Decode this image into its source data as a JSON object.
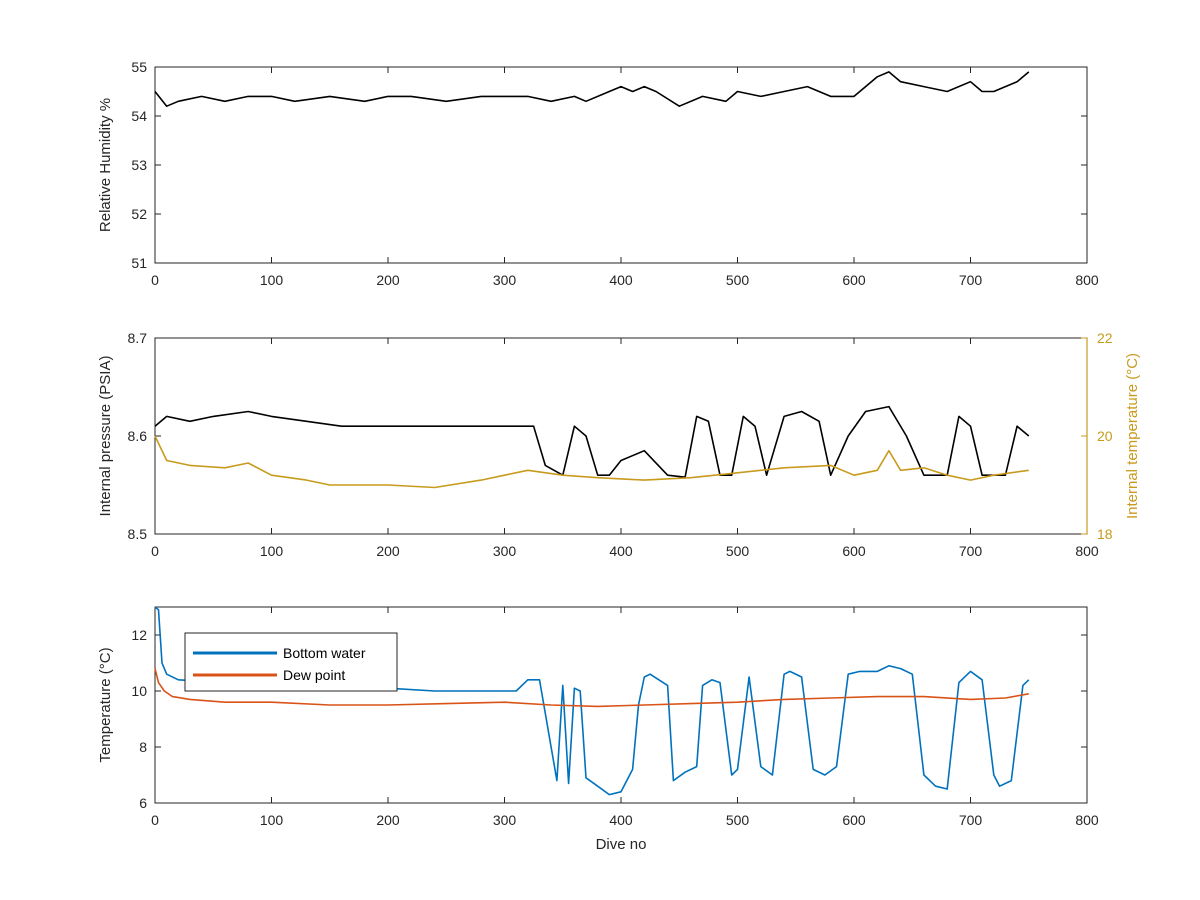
{
  "chart_data": [
    {
      "type": "line",
      "title": "",
      "xlabel": "",
      "ylabel": "Relative Humidity %",
      "xlim": [
        0,
        800
      ],
      "ylim": [
        51,
        55
      ],
      "xticks": [
        "0",
        "100",
        "200",
        "300",
        "400",
        "500",
        "600",
        "700",
        "800"
      ],
      "yticks": [
        "51",
        "52",
        "53",
        "54",
        "55"
      ],
      "grid": false,
      "series": [
        {
          "color": "#000000",
          "x": [
            0,
            10,
            20,
            40,
            60,
            80,
            100,
            120,
            150,
            180,
            200,
            220,
            250,
            280,
            300,
            320,
            340,
            360,
            370,
            390,
            400,
            410,
            420,
            430,
            450,
            470,
            490,
            500,
            520,
            540,
            560,
            580,
            600,
            610,
            620,
            630,
            640,
            660,
            680,
            700,
            710,
            720,
            730,
            740,
            750
          ],
          "y": [
            54.5,
            54.2,
            54.3,
            54.4,
            54.3,
            54.4,
            54.4,
            54.3,
            54.4,
            54.3,
            54.4,
            54.4,
            54.3,
            54.4,
            54.4,
            54.4,
            54.3,
            54.4,
            54.3,
            54.5,
            54.6,
            54.5,
            54.6,
            54.5,
            54.2,
            54.4,
            54.3,
            54.5,
            54.4,
            54.5,
            54.6,
            54.4,
            54.4,
            54.6,
            54.8,
            54.9,
            54.7,
            54.6,
            54.5,
            54.7,
            54.5,
            54.5,
            54.6,
            54.7,
            54.9
          ]
        }
      ]
    },
    {
      "type": "line",
      "title": "",
      "xlabel": "",
      "ylabel": "Internal pressure (PSIA)",
      "y2label": "Internal temperature (°C)",
      "xlim": [
        0,
        800
      ],
      "ylim": [
        8.5,
        8.7
      ],
      "y2lim": [
        18,
        22
      ],
      "xticks": [
        "0",
        "100",
        "200",
        "300",
        "400",
        "500",
        "600",
        "700",
        "800"
      ],
      "yticks": [
        "8.5",
        "8.6",
        "8.7"
      ],
      "y2ticks": [
        "18",
        "20",
        "22"
      ],
      "grid": false,
      "series": [
        {
          "axis": "left",
          "color": "#000000",
          "x": [
            0,
            10,
            30,
            50,
            80,
            100,
            130,
            160,
            200,
            230,
            260,
            300,
            325,
            335,
            350,
            360,
            370,
            380,
            390,
            400,
            420,
            440,
            455,
            465,
            475,
            485,
            495,
            505,
            515,
            525,
            540,
            555,
            570,
            580,
            595,
            610,
            630,
            645,
            660,
            680,
            690,
            700,
            710,
            730,
            740,
            750
          ],
          "y": [
            8.61,
            8.62,
            8.615,
            8.62,
            8.625,
            8.62,
            8.615,
            8.61,
            8.61,
            8.61,
            8.61,
            8.61,
            8.61,
            8.57,
            8.56,
            8.61,
            8.6,
            8.56,
            8.56,
            8.575,
            8.585,
            8.56,
            8.558,
            8.62,
            8.615,
            8.56,
            8.56,
            8.62,
            8.61,
            8.56,
            8.62,
            8.625,
            8.615,
            8.56,
            8.6,
            8.625,
            8.63,
            8.6,
            8.56,
            8.56,
            8.62,
            8.61,
            8.56,
            8.56,
            8.61,
            8.6
          ]
        },
        {
          "axis": "right",
          "color": "#C89B1E",
          "x": [
            0,
            10,
            30,
            60,
            80,
            100,
            130,
            150,
            200,
            240,
            280,
            320,
            350,
            380,
            420,
            460,
            500,
            540,
            580,
            600,
            620,
            630,
            640,
            660,
            680,
            700,
            720,
            750
          ],
          "y": [
            20.0,
            19.5,
            19.4,
            19.35,
            19.45,
            19.2,
            19.1,
            19.0,
            19.0,
            18.95,
            19.1,
            19.3,
            19.2,
            19.15,
            19.1,
            19.15,
            19.25,
            19.35,
            19.4,
            19.2,
            19.3,
            19.7,
            19.3,
            19.35,
            19.2,
            19.1,
            19.2,
            19.3
          ]
        }
      ]
    },
    {
      "type": "line",
      "title": "",
      "xlabel": "Dive no",
      "ylabel": "Temperature (°C)",
      "xlim": [
        0,
        800
      ],
      "ylim": [
        6,
        13
      ],
      "xticks": [
        "0",
        "100",
        "200",
        "300",
        "400",
        "500",
        "600",
        "700",
        "800"
      ],
      "yticks": [
        "6",
        "8",
        "10",
        "12"
      ],
      "grid": false,
      "legend_position": "top-left",
      "series": [
        {
          "name": "Bottom water",
          "color": "#0072BD",
          "x": [
            0,
            3,
            6,
            10,
            20,
            40,
            80,
            120,
            160,
            200,
            240,
            280,
            310,
            320,
            330,
            340,
            345,
            350,
            355,
            360,
            365,
            370,
            380,
            390,
            400,
            410,
            415,
            420,
            425,
            440,
            445,
            455,
            465,
            470,
            478,
            485,
            495,
            500,
            510,
            520,
            530,
            540,
            545,
            555,
            565,
            575,
            585,
            595,
            605,
            620,
            630,
            640,
            650,
            660,
            670,
            680,
            690,
            700,
            710,
            720,
            725,
            735,
            745,
            750
          ],
          "y": [
            13.0,
            12.9,
            11.0,
            10.6,
            10.4,
            10.35,
            10.3,
            10.25,
            10.2,
            10.1,
            10.0,
            10.0,
            10.0,
            10.4,
            10.4,
            8.0,
            6.8,
            10.2,
            6.7,
            10.1,
            10.0,
            6.9,
            6.6,
            6.3,
            6.4,
            7.2,
            9.5,
            10.5,
            10.6,
            10.2,
            6.8,
            7.1,
            7.3,
            10.2,
            10.4,
            10.3,
            7.0,
            7.2,
            10.5,
            7.3,
            7.0,
            10.6,
            10.7,
            10.5,
            7.2,
            7.0,
            7.3,
            10.6,
            10.7,
            10.7,
            10.9,
            10.8,
            10.6,
            7.0,
            6.6,
            6.5,
            10.3,
            10.7,
            10.4,
            7.0,
            6.6,
            6.8,
            10.2,
            10.4
          ]
        },
        {
          "name": "Dew point",
          "color": "#D95319",
          "x": [
            0,
            3,
            8,
            15,
            30,
            60,
            100,
            150,
            200,
            250,
            300,
            340,
            380,
            420,
            460,
            500,
            540,
            580,
            620,
            660,
            700,
            730,
            750
          ],
          "y": [
            10.8,
            10.3,
            10.0,
            9.8,
            9.7,
            9.6,
            9.6,
            9.5,
            9.5,
            9.55,
            9.6,
            9.5,
            9.45,
            9.5,
            9.55,
            9.6,
            9.7,
            9.75,
            9.8,
            9.8,
            9.7,
            9.75,
            9.9
          ]
        }
      ]
    }
  ]
}
